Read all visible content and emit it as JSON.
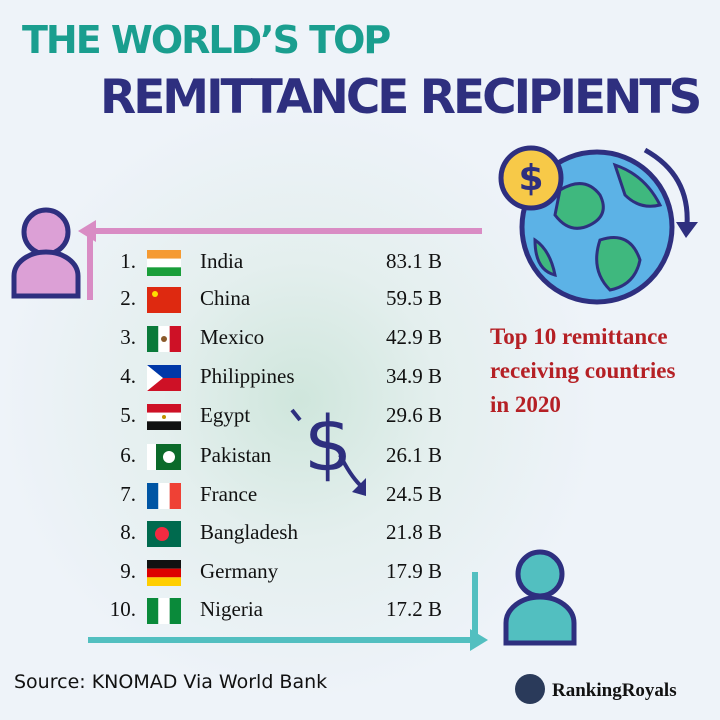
{
  "header": {
    "title_line1": "THE WORLD’S TOP",
    "title_line2": "REMITTANCE RECIPIENTS"
  },
  "table": {
    "rows": [
      [
        "1.",
        "India",
        "83.1 B"
      ],
      [
        "2.",
        "China",
        "59.5 B"
      ],
      [
        "3.",
        "Mexico",
        "42.9 B"
      ],
      [
        "4.",
        "Philippines",
        "34.9 B"
      ],
      [
        "5.",
        "Egypt",
        "29.6 B"
      ],
      [
        "6.",
        "Pakistan",
        "26.1 B"
      ],
      [
        "7.",
        "France",
        "24.5 B"
      ],
      [
        "8.",
        "Bangladesh",
        "21.8 B"
      ],
      [
        "9.",
        "Germany",
        "17.9 B"
      ],
      [
        "10.",
        "Nigeria",
        "17.2 B"
      ]
    ]
  },
  "note": {
    "lines": [
      "Top 10 remittance",
      "receiving countries",
      "in 2020"
    ]
  },
  "footer": {
    "source": "Source: KNOMAD Via World Bank",
    "brand": "RankingRoyals"
  }
}
